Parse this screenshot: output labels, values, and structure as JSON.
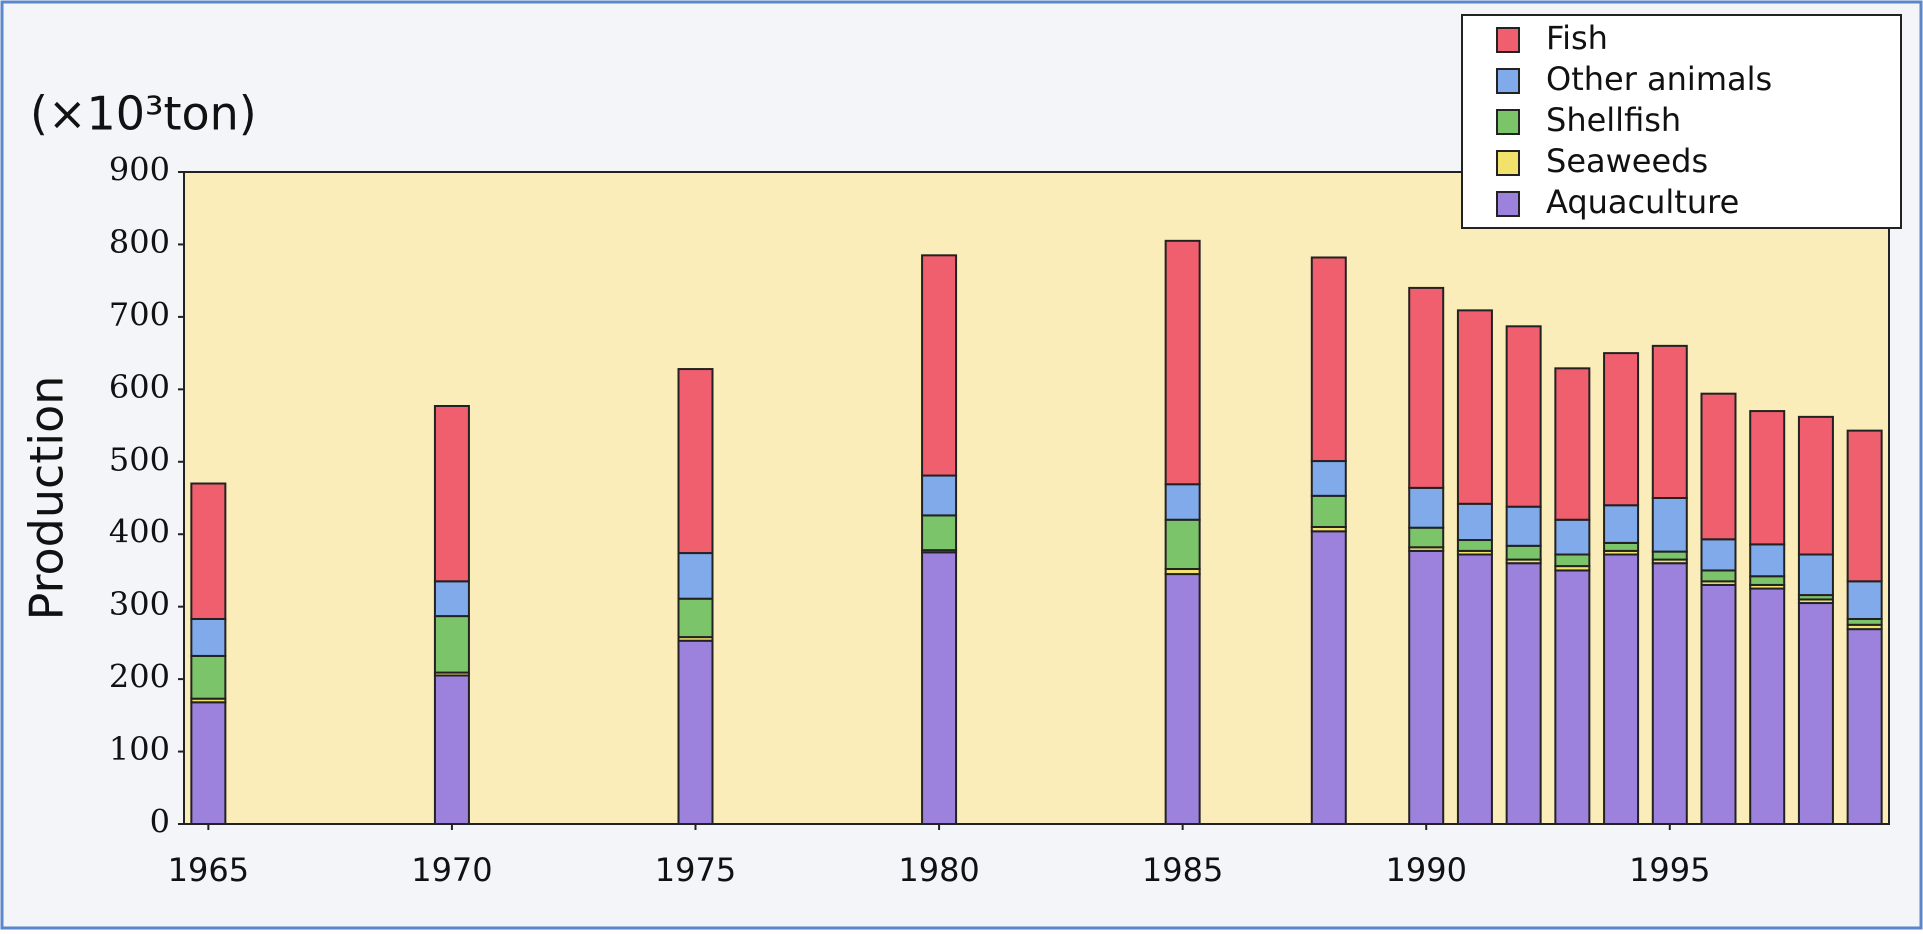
{
  "chart_data": {
    "type": "stacked_bar",
    "unit_label": "(×10³ton)",
    "y_label": "Production",
    "x": [
      1965,
      1970,
      1975,
      1980,
      1985,
      1988,
      1990,
      1991,
      1992,
      1993,
      1994,
      1995,
      1996,
      1997,
      1998,
      1999
    ],
    "xlim": [
      1964.5,
      1999.5
    ],
    "xticks": [
      1965,
      1970,
      1975,
      1980,
      1985,
      1990,
      1995
    ],
    "ylim": [
      0,
      900
    ],
    "yticks": [
      0,
      100,
      200,
      300,
      400,
      500,
      600,
      700,
      800,
      900
    ],
    "legend": "upper right",
    "series": [
      {
        "name": "Aquaculture",
        "color": "#9c82dc",
        "values": [
          168,
          205,
          253,
          375,
          345,
          404,
          377,
          372,
          360,
          350,
          372,
          360,
          330,
          325,
          305,
          269
        ]
      },
      {
        "name": "Seaweeds",
        "color": "#f2e26c",
        "values": [
          5,
          4,
          5,
          3,
          7,
          6,
          5,
          5,
          5,
          6,
          5,
          5,
          5,
          5,
          5,
          6
        ]
      },
      {
        "name": "Shellfish",
        "color": "#7cc46a",
        "values": [
          59,
          78,
          53,
          48,
          68,
          43,
          27,
          15,
          19,
          16,
          11,
          11,
          15,
          12,
          6,
          8
        ]
      },
      {
        "name": "Other animals",
        "color": "#80aaea",
        "values": [
          51,
          48,
          63,
          55,
          49,
          48,
          55,
          50,
          54,
          48,
          52,
          74,
          43,
          44,
          56,
          52
        ]
      },
      {
        "name": "Fish",
        "color": "#ef5f6e",
        "values": [
          187,
          242,
          254,
          304,
          336,
          281,
          276,
          267,
          249,
          209,
          210,
          210,
          201,
          184,
          190,
          208
        ]
      }
    ]
  }
}
